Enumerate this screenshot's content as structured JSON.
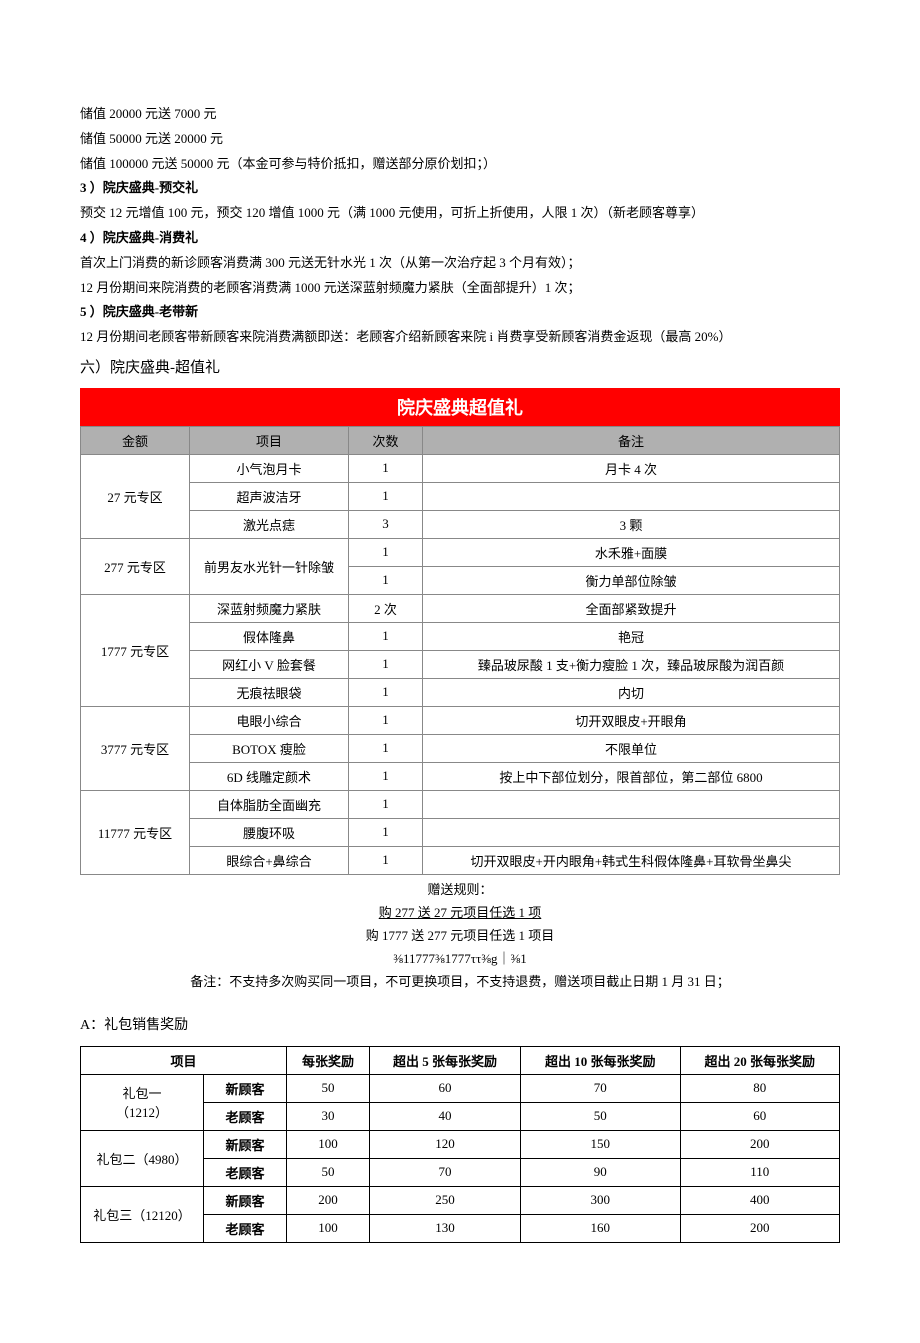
{
  "paragraphs": {
    "p1": "储值 20000 元送 7000 元",
    "p2": "储值 50000 元送 20000 元",
    "p3": "储值 100000 元送 50000 元（本金可参与特价抵扣，赠送部分原价划扣；）",
    "h3": "3 ）院庆盛典-预交礼",
    "p4": "预交 12 元增值 100 元，预交 120 增值 1000 元（满 1000 元使用，可折上折使用，人限 1 次）（新老顾客尊享）",
    "h4": "4 ）院庆盛典-消费礼",
    "p5": "首次上门消费的新诊顾客消费满 300 元送无针水光 1 次（从第一次治疗起 3 个月有效）；",
    "p6": "12 月份期间来院消费的老顾客消费满 1000 元送深蓝射频魔力紧肤（全面部提升）1 次；",
    "h5": "5 ）院庆盛典-老带新",
    "p7": "12 月份期间老顾客带新顾客来院消费满额即送：老顾客介绍新顾客来院 i 肖费享受新顾客消费金返现（最高 20%）",
    "h6": "六）院庆盛典-超值礼"
  },
  "banner": "院庆盛典超值礼",
  "valueTable": {
    "headers": [
      "金额",
      "项目",
      "次数",
      "备注"
    ],
    "groups": [
      {
        "label": "27 元专区",
        "rows": [
          {
            "project": "小气泡月卡",
            "count": "1",
            "note": "月卡 4 次"
          },
          {
            "project": "超声波洁牙",
            "count": "1",
            "note": ""
          },
          {
            "project": "激光点痣",
            "count": "3",
            "note": "3 颗"
          }
        ]
      },
      {
        "label": "277 元专区",
        "rows": [
          {
            "project": "前男友水光针一针除皱",
            "count": "1",
            "note": "水禾雅+面膜"
          },
          {
            "project": "",
            "count": "1",
            "note": "衡力单部位除皱",
            "mergedProject": true
          }
        ]
      },
      {
        "label": "1777 元专区",
        "rows": [
          {
            "project": "深蓝射频魔力紧肤",
            "count": "2 次",
            "note": "全面部紧致提升"
          },
          {
            "project": "假体隆鼻",
            "count": "1",
            "note": "艳冠"
          },
          {
            "project": "网红小 V 脸套餐",
            "count": "1",
            "note": "臻品玻尿酸 1 支+衡力瘦脸 1 次，臻品玻尿酸为润百颜"
          },
          {
            "project": "无痕祛眼袋",
            "count": "1",
            "note": "内切"
          }
        ]
      },
      {
        "label": "3777 元专区",
        "rows": [
          {
            "project": "电眼小综合",
            "count": "1",
            "note": "切开双眼皮+开眼角"
          },
          {
            "project": "BOTOX 瘦脸",
            "count": "1",
            "note": "不限单位"
          },
          {
            "project": "6D 线雕定颜术",
            "count": "1",
            "note": "按上中下部位划分，限首部位，第二部位 6800"
          }
        ]
      },
      {
        "label": "11777 元专区",
        "rows": [
          {
            "project": "自体脂肪全面幽充",
            "count": "1",
            "note": ""
          },
          {
            "project": "腰腹环吸",
            "count": "1",
            "note": ""
          },
          {
            "project": "眼综合+鼻综合",
            "count": "1",
            "note": "切开双眼皮+开内眼角+韩式生科假体隆鼻+耳软骨坐鼻尖"
          }
        ]
      }
    ]
  },
  "rules": {
    "r1": "赠送规则：",
    "r2": "购 277 送 27 元项目任选 1 项",
    "r3": "购 1777 送 277 元项目任选 1 项目",
    "r4": "⅜11777⅜1777ττ⅜g｜⅜1",
    "r5": "备注：不支持多次购买同一项目，不可更换项目，不支持退费，赠送项目截止日期 1 月 31 日；"
  },
  "rewardHeading": "A：礼包销售奖励",
  "rewardTable": {
    "headers": [
      "项目",
      "每张奖励",
      "超出 5 张每张奖励",
      "超出 10 张每张奖励",
      "超出 20 张每张奖励"
    ],
    "groups": [
      {
        "label": "礼包一\n（1212）",
        "rows": [
          {
            "cust": "新顾客",
            "v1": "50",
            "v2": "60",
            "v3": "70",
            "v4": "80"
          },
          {
            "cust": "老顾客",
            "v1": "30",
            "v2": "40",
            "v3": "50",
            "v4": "60"
          }
        ]
      },
      {
        "label": "礼包二（4980）",
        "rows": [
          {
            "cust": "新顾客",
            "v1": "100",
            "v2": "120",
            "v3": "150",
            "v4": "200"
          },
          {
            "cust": "老顾客",
            "v1": "50",
            "v2": "70",
            "v3": "90",
            "v4": "110"
          }
        ]
      },
      {
        "label": "礼包三（12120）",
        "rows": [
          {
            "cust": "新顾客",
            "v1": "200",
            "v2": "250",
            "v3": "300",
            "v4": "400"
          },
          {
            "cust": "老顾客",
            "v1": "100",
            "v2": "130",
            "v3": "160",
            "v4": "200"
          }
        ]
      }
    ]
  }
}
